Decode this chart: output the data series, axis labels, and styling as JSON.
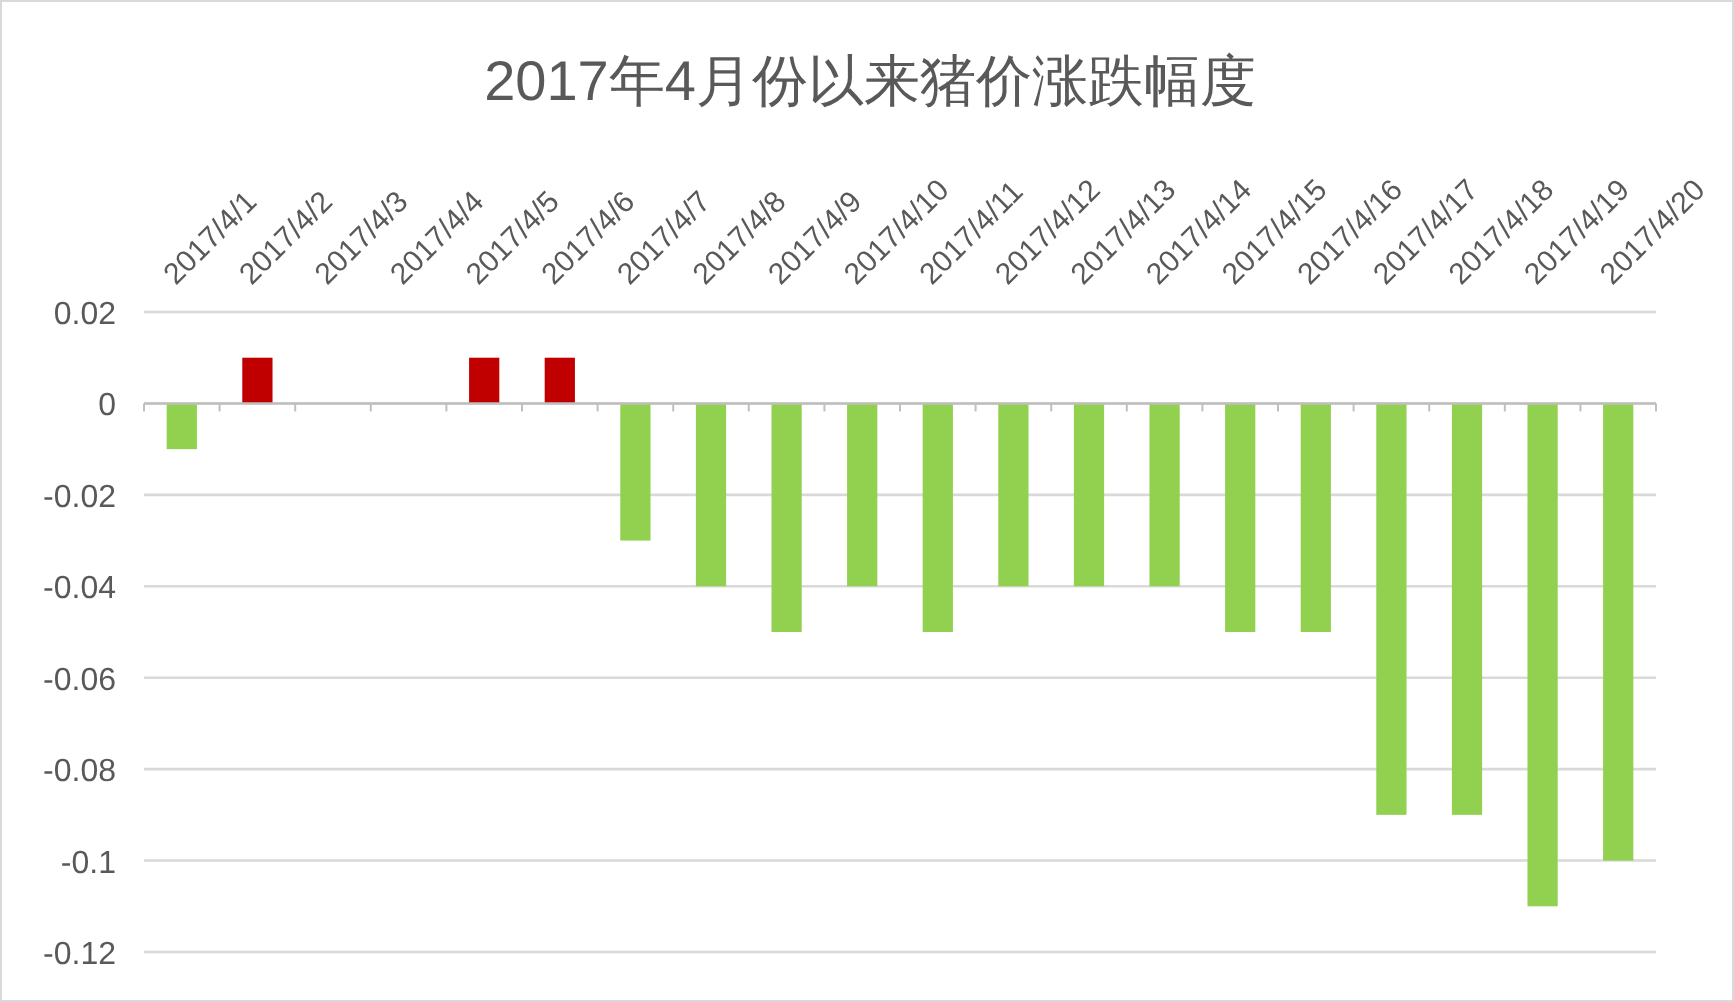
{
  "chart_data": {
    "type": "bar",
    "title": "2017年4月份以来猪价涨跌幅度",
    "categories": [
      "2017/4/1",
      "2017/4/2",
      "2017/4/3",
      "2017/4/4",
      "2017/4/5",
      "2017/4/6",
      "2017/4/7",
      "2017/4/8",
      "2017/4/9",
      "2017/4/10",
      "2017/4/11",
      "2017/4/12",
      "2017/4/13",
      "2017/4/14",
      "2017/4/15",
      "2017/4/16",
      "2017/4/17",
      "2017/4/18",
      "2017/4/19",
      "2017/4/20"
    ],
    "values": [
      -0.01,
      0.01,
      0,
      0,
      0.01,
      0.01,
      -0.03,
      -0.04,
      -0.05,
      -0.04,
      -0.05,
      -0.04,
      -0.04,
      -0.04,
      -0.05,
      -0.05,
      -0.09,
      -0.09,
      -0.11,
      -0.1
    ],
    "colors": [
      "#92d050",
      "#c00000",
      "#92d050",
      "#92d050",
      "#c00000",
      "#c00000",
      "#92d050",
      "#92d050",
      "#92d050",
      "#92d050",
      "#92d050",
      "#92d050",
      "#92d050",
      "#92d050",
      "#92d050",
      "#92d050",
      "#92d050",
      "#92d050",
      "#92d050",
      "#92d050"
    ],
    "ylim": [
      -0.12,
      0.02
    ],
    "yticks": [
      0.02,
      0,
      -0.02,
      -0.04,
      -0.06,
      -0.08,
      -0.1,
      -0.12
    ],
    "grid": "y"
  }
}
